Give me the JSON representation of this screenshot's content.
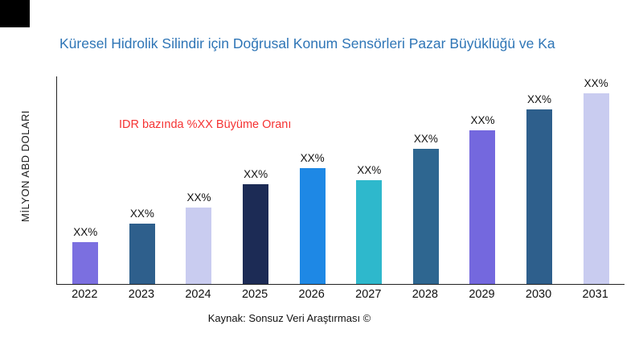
{
  "colors": {
    "title": "#2E75B6",
    "annotation": "#F53333",
    "axis": "#222222",
    "corner_mark": "#000000"
  },
  "chart_data": {
    "type": "bar",
    "title": "Küresel Hidrolik Silindir için Doğrusal Konum Sensörleri Pazar Büyüklüğü ve Ka",
    "ylabel": "MİLYON ABD DOLARI",
    "xlabel": "",
    "annotation": "IDR bazında %XX Büyüme Oranı",
    "source": "Kaynak: Sonsuz Veri Araştırması ©",
    "categories": [
      "2022",
      "2023",
      "2024",
      "2025",
      "2026",
      "2027",
      "2028",
      "2029",
      "2030",
      "2031"
    ],
    "values": [
      20,
      29,
      37,
      48,
      56,
      50,
      65,
      74,
      84,
      92
    ],
    "bar_labels": [
      "XX%",
      "XX%",
      "XX%",
      "XX%",
      "XX%",
      "XX%",
      "XX%",
      "XX%",
      "XX%",
      "XX%"
    ],
    "bar_colors": [
      "#7B6FE0",
      "#2E5F8C",
      "#C9CCF0",
      "#1C2B55",
      "#1E88E5",
      "#2EB8CC",
      "#2E6690",
      "#7468DE",
      "#2E5F8C",
      "#C9CCF0"
    ],
    "ylim": [
      0,
      100
    ],
    "grid": false,
    "legend": "none"
  }
}
